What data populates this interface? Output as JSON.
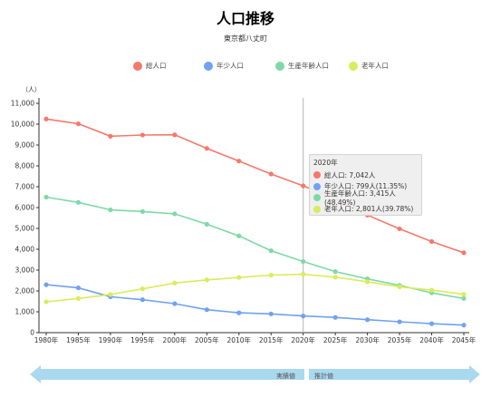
{
  "header": {
    "title": "人口推移",
    "subtitle": "東京都八丈町"
  },
  "legend": [
    {
      "name": "総人口",
      "color": "#f4796b"
    },
    {
      "name": "年少人口",
      "color": "#6fa2f2"
    },
    {
      "name": "生産年齢人口",
      "color": "#7fd9a6"
    },
    {
      "name": "老年人口",
      "color": "#d9ec5a"
    }
  ],
  "tooltip": {
    "year": "2020年",
    "rows": [
      {
        "text": "総人口: 7,042人",
        "color": "#f4796b"
      },
      {
        "text": "年少人口: 799人(11.35%)",
        "color": "#6fa2f2"
      },
      {
        "text": "生産年齢人口: 3,415人(48.49%)",
        "color": "#7fd9a6"
      },
      {
        "text": "老年人口: 2,801人(39.78%)",
        "color": "#d9ec5a"
      }
    ]
  },
  "footer": {
    "actual_label": "実績値",
    "projected_label": "推計値",
    "arrow_color": "#a9d9ef"
  },
  "chart_data": {
    "type": "line",
    "ylabel": "（人）",
    "ylim": [
      0,
      11000
    ],
    "yticks": [
      0,
      1000,
      2000,
      3000,
      4000,
      5000,
      6000,
      7000,
      8000,
      9000,
      10000,
      11000
    ],
    "ytick_labels": [
      "0",
      "1,000",
      "2,000",
      "3,000",
      "4,000",
      "5,000",
      "6,000",
      "7,000",
      "8,000",
      "9,000",
      "10,000",
      "11,000"
    ],
    "categories": [
      "1980年",
      "1985年",
      "1990年",
      "1995年",
      "2000年",
      "2005年",
      "2010年",
      "2015年",
      "2020年",
      "2025年",
      "2030年",
      "2035年",
      "2040年",
      "2045年"
    ],
    "highlight_category": "2020年",
    "grid": false,
    "series": [
      {
        "name": "総人口",
        "color": "#f4796b",
        "values": [
          10250,
          10020,
          9420,
          9480,
          9490,
          8840,
          8230,
          7610,
          7042,
          6430,
          5640,
          4980,
          4370,
          3830
        ]
      },
      {
        "name": "年少人口",
        "color": "#6fa2f2",
        "values": [
          2300,
          2150,
          1720,
          1580,
          1390,
          1100,
          950,
          900,
          799,
          730,
          620,
          520,
          430,
          360
        ]
      },
      {
        "name": "生産年齢人口",
        "color": "#7fd9a6",
        "values": [
          6500,
          6250,
          5890,
          5810,
          5700,
          5200,
          4640,
          3930,
          3415,
          2930,
          2580,
          2270,
          1910,
          1640
        ]
      },
      {
        "name": "老年人口",
        "color": "#d9ec5a",
        "values": [
          1480,
          1640,
          1830,
          2100,
          2380,
          2530,
          2650,
          2760,
          2801,
          2660,
          2440,
          2200,
          2040,
          1840
        ]
      }
    ]
  }
}
